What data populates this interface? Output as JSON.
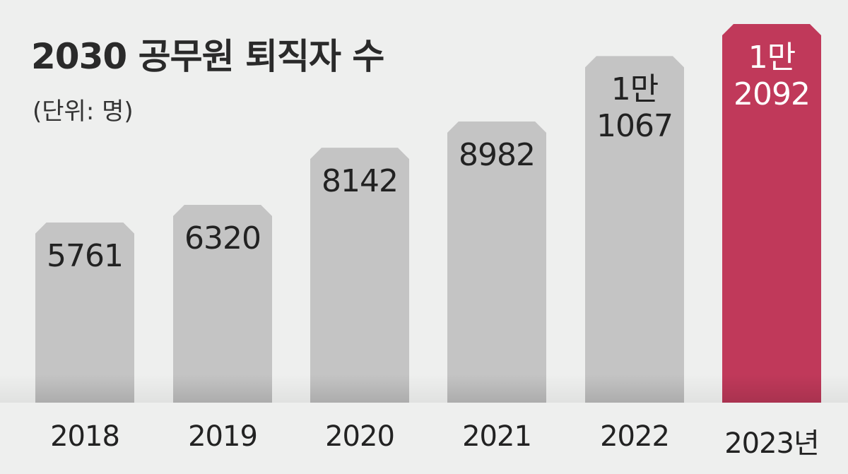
{
  "chart_data": {
    "type": "bar",
    "title": "2030 공무원 퇴직자 수",
    "subtitle": "(단위: 명)",
    "categories": [
      "2018",
      "2019",
      "2020",
      "2021",
      "2022",
      "2023년"
    ],
    "values": [
      5761,
      6320,
      8142,
      8982,
      11067,
      12092
    ],
    "value_labels": [
      "5761",
      "6320",
      "8142",
      "8982",
      "1만\n1067",
      "1만\n2092"
    ],
    "colors": [
      "#c4c4c4",
      "#c4c4c4",
      "#c4c4c4",
      "#c4c4c4",
      "#c4c4c4",
      "#c0395a"
    ],
    "value_label_colors": [
      "#222222",
      "#222222",
      "#222222",
      "#222222",
      "#222222",
      "#ffffff"
    ]
  }
}
